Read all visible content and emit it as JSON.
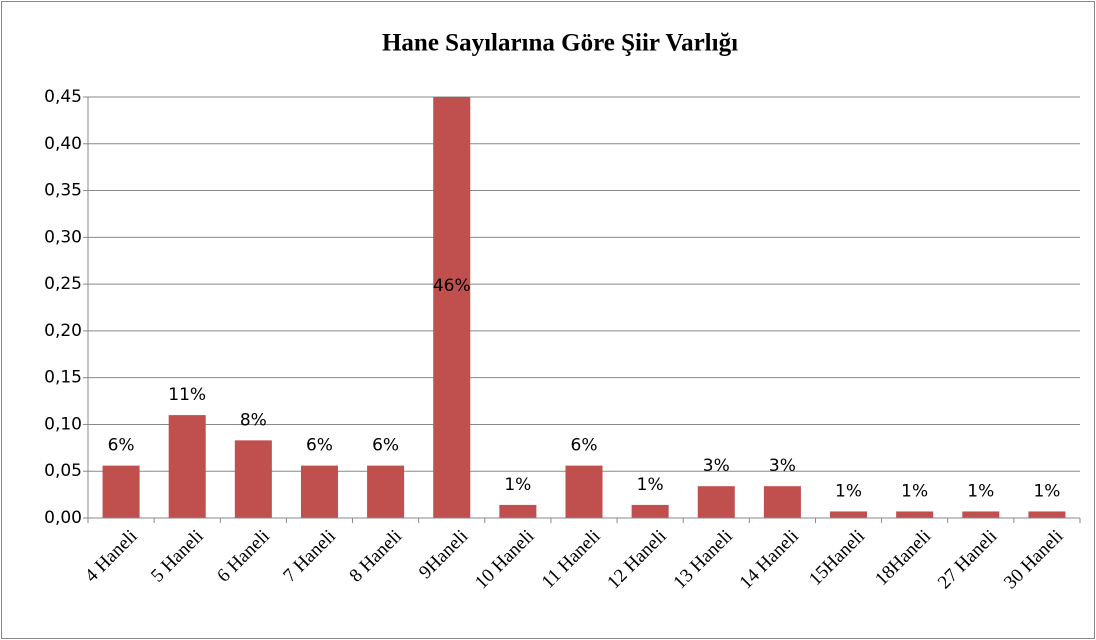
{
  "chart_data": {
    "type": "bar",
    "title": "Hane Sayılarına Göre Şiir Varlığı",
    "categories": [
      "4 Haneli",
      "5 Haneli",
      "6 Haneli",
      "7 Haneli",
      "8 Haneli",
      "9Haneli",
      "10 Haneli",
      "11  Haneli",
      "12 Haneli",
      "13 Haneli",
      "14 Haneli",
      "15Haneli",
      "18Haneli",
      "27 Haneli",
      "30 Haneli"
    ],
    "values": [
      0.056,
      0.11,
      0.083,
      0.056,
      0.056,
      0.46,
      0.014,
      0.056,
      0.014,
      0.034,
      0.034,
      0.007,
      0.007,
      0.007,
      0.007
    ],
    "value_labels": [
      "6%",
      "11%",
      "8%",
      "6%",
      "6%",
      "46%",
      "1%",
      "6%",
      "1%",
      "3%",
      "3%",
      "1%",
      "1%",
      "1%",
      "1%"
    ],
    "color": "#c0504d",
    "ylim": [
      0,
      0.45
    ],
    "yticks": [
      {
        "value": 0,
        "label": "0,00"
      },
      {
        "value": 0.05,
        "label": "0,05"
      },
      {
        "value": 0.1,
        "label": "0,10"
      },
      {
        "value": 0.15,
        "label": "0,15"
      },
      {
        "value": 0.2,
        "label": "0,20"
      },
      {
        "value": 0.25,
        "label": "0,25"
      },
      {
        "value": 0.3,
        "label": "0,30"
      },
      {
        "value": 0.35,
        "label": "0,35"
      },
      {
        "value": 0.4,
        "label": "0,40"
      },
      {
        "value": 0.45,
        "label": "0,45"
      }
    ],
    "grid": true
  }
}
